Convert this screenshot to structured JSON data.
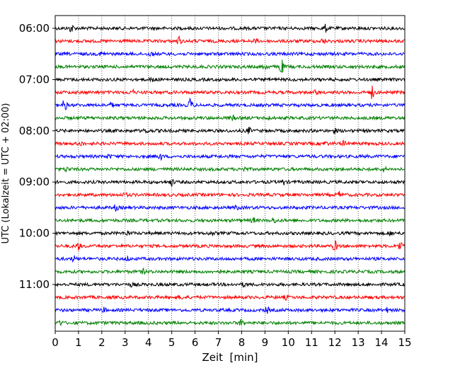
{
  "chart_data": {
    "type": "line",
    "subtype": "seismogram-helicorder",
    "title": "",
    "xlabel": "Zeit  [min]",
    "ylabel": "UTC (Lokalzeit = UTC + 02:00)",
    "xlim": [
      0,
      15
    ],
    "x_ticks": [
      0,
      1,
      2,
      3,
      4,
      5,
      6,
      7,
      8,
      9,
      10,
      11,
      12,
      13,
      14,
      15
    ],
    "x_tick_labels": [
      "0",
      "1",
      "2",
      "3",
      "4",
      "5",
      "6",
      "7",
      "8",
      "9",
      "10",
      "11",
      "12",
      "13",
      "14",
      "15"
    ],
    "y_tick_labels": [
      {
        "label": "06:00",
        "row": 0
      },
      {
        "label": "07:00",
        "row": 4
      },
      {
        "label": "08:00",
        "row": 8
      },
      {
        "label": "09:00",
        "row": 12
      },
      {
        "label": "10:00",
        "row": 16
      },
      {
        "label": "11:00",
        "row": 20
      }
    ],
    "grid": "vertical dotted lines at each minute",
    "row_duration_min": 15,
    "row_colors": [
      "#000000",
      "#ff0000",
      "#0000ff",
      "#008000"
    ],
    "rows": [
      {
        "start": "06:00",
        "color": "#000000",
        "events": [
          {
            "t": 0.7,
            "amp": 0.6
          },
          {
            "t": 11.6,
            "amp": 0.5
          }
        ]
      },
      {
        "start": "06:15",
        "color": "#ff0000",
        "events": [
          {
            "t": 5.3,
            "amp": 0.6
          },
          {
            "t": 8.6,
            "amp": 0.3
          },
          {
            "t": 11.5,
            "amp": 0.35
          }
        ]
      },
      {
        "start": "06:30",
        "color": "#0000ff",
        "events": [
          {
            "t": 2.0,
            "amp": 0.3
          },
          {
            "t": 4.1,
            "amp": 0.3
          }
        ]
      },
      {
        "start": "06:45",
        "color": "#008000",
        "events": [
          {
            "t": 9.0,
            "amp": 0.5
          },
          {
            "t": 9.7,
            "amp": 1.2
          }
        ]
      },
      {
        "start": "07:00",
        "color": "#000000",
        "events": [
          {
            "t": 4.2,
            "amp": 0.35
          }
        ]
      },
      {
        "start": "07:15",
        "color": "#ff0000",
        "events": [
          {
            "t": 3.3,
            "amp": 0.35
          },
          {
            "t": 11.2,
            "amp": 0.3
          },
          {
            "t": 13.6,
            "amp": 0.9
          }
        ]
      },
      {
        "start": "07:30",
        "color": "#0000ff",
        "events": [
          {
            "t": 0.4,
            "amp": 0.9
          },
          {
            "t": 5.8,
            "amp": 0.9
          },
          {
            "t": 2.4,
            "amp": 0.3
          }
        ]
      },
      {
        "start": "07:45",
        "color": "#008000",
        "events": [
          {
            "t": 7.6,
            "amp": 0.3
          },
          {
            "t": 9.1,
            "amp": 0.3
          }
        ]
      },
      {
        "start": "08:00",
        "color": "#000000",
        "events": [
          {
            "t": 3.9,
            "amp": 0.3
          },
          {
            "t": 8.3,
            "amp": 0.4
          },
          {
            "t": 12.0,
            "amp": 0.3
          }
        ]
      },
      {
        "start": "08:15",
        "color": "#ff0000",
        "events": [
          {
            "t": 1.1,
            "amp": 0.3
          },
          {
            "t": 11.6,
            "amp": 0.3
          },
          {
            "t": 12.4,
            "amp": 0.3
          }
        ]
      },
      {
        "start": "08:30",
        "color": "#0000ff",
        "events": [
          {
            "t": 4.5,
            "amp": 0.45
          },
          {
            "t": 2.3,
            "amp": 0.25
          }
        ]
      },
      {
        "start": "08:45",
        "color": "#008000",
        "events": [
          {
            "t": 0.5,
            "amp": 0.3
          },
          {
            "t": 8.1,
            "amp": 0.3
          },
          {
            "t": 14.1,
            "amp": 0.3
          }
        ]
      },
      {
        "start": "09:00",
        "color": "#000000",
        "events": [
          {
            "t": 5.0,
            "amp": 0.5
          },
          {
            "t": 9.8,
            "amp": 0.3
          }
        ]
      },
      {
        "start": "09:15",
        "color": "#ff0000",
        "events": [
          {
            "t": 12.2,
            "amp": 0.35
          },
          {
            "t": 3.0,
            "amp": 0.25
          }
        ]
      },
      {
        "start": "09:30",
        "color": "#0000ff",
        "events": [
          {
            "t": 2.6,
            "amp": 0.4
          },
          {
            "t": 7.8,
            "amp": 0.25
          }
        ]
      },
      {
        "start": "09:45",
        "color": "#008000",
        "events": [
          {
            "t": 8.5,
            "amp": 0.35
          },
          {
            "t": 9.4,
            "amp": 0.35
          }
        ]
      },
      {
        "start": "10:00",
        "color": "#000000",
        "events": [
          {
            "t": 3.1,
            "amp": 0.3
          },
          {
            "t": 6.7,
            "amp": 0.3
          },
          {
            "t": 14.4,
            "amp": 0.3
          }
        ]
      },
      {
        "start": "10:15",
        "color": "#ff0000",
        "events": [
          {
            "t": 1.0,
            "amp": 0.55
          },
          {
            "t": 12.0,
            "amp": 0.7
          },
          {
            "t": 14.8,
            "amp": 0.7
          }
        ]
      },
      {
        "start": "10:30",
        "color": "#0000ff",
        "events": [
          {
            "t": 0.8,
            "amp": 0.35
          },
          {
            "t": 3.1,
            "amp": 0.3
          }
        ]
      },
      {
        "start": "10:45",
        "color": "#008000",
        "events": [
          {
            "t": 3.8,
            "amp": 0.3
          },
          {
            "t": 7.0,
            "amp": 0.3
          }
        ]
      },
      {
        "start": "11:00",
        "color": "#000000",
        "events": [
          {
            "t": 3.3,
            "amp": 0.25
          },
          {
            "t": 8.1,
            "amp": 0.25
          }
        ]
      },
      {
        "start": "11:15",
        "color": "#ff0000",
        "events": [
          {
            "t": 5.4,
            "amp": 0.25
          },
          {
            "t": 9.9,
            "amp": 0.25
          }
        ]
      },
      {
        "start": "11:30",
        "color": "#0000ff",
        "events": [
          {
            "t": 2.1,
            "amp": 0.3
          },
          {
            "t": 9.1,
            "amp": 0.4
          },
          {
            "t": 14.2,
            "amp": 0.35
          }
        ]
      },
      {
        "start": "11:45",
        "color": "#008000",
        "events": [
          {
            "t": 0.2,
            "amp": 0.35
          },
          {
            "t": 8.0,
            "amp": 0.5
          }
        ]
      }
    ]
  }
}
